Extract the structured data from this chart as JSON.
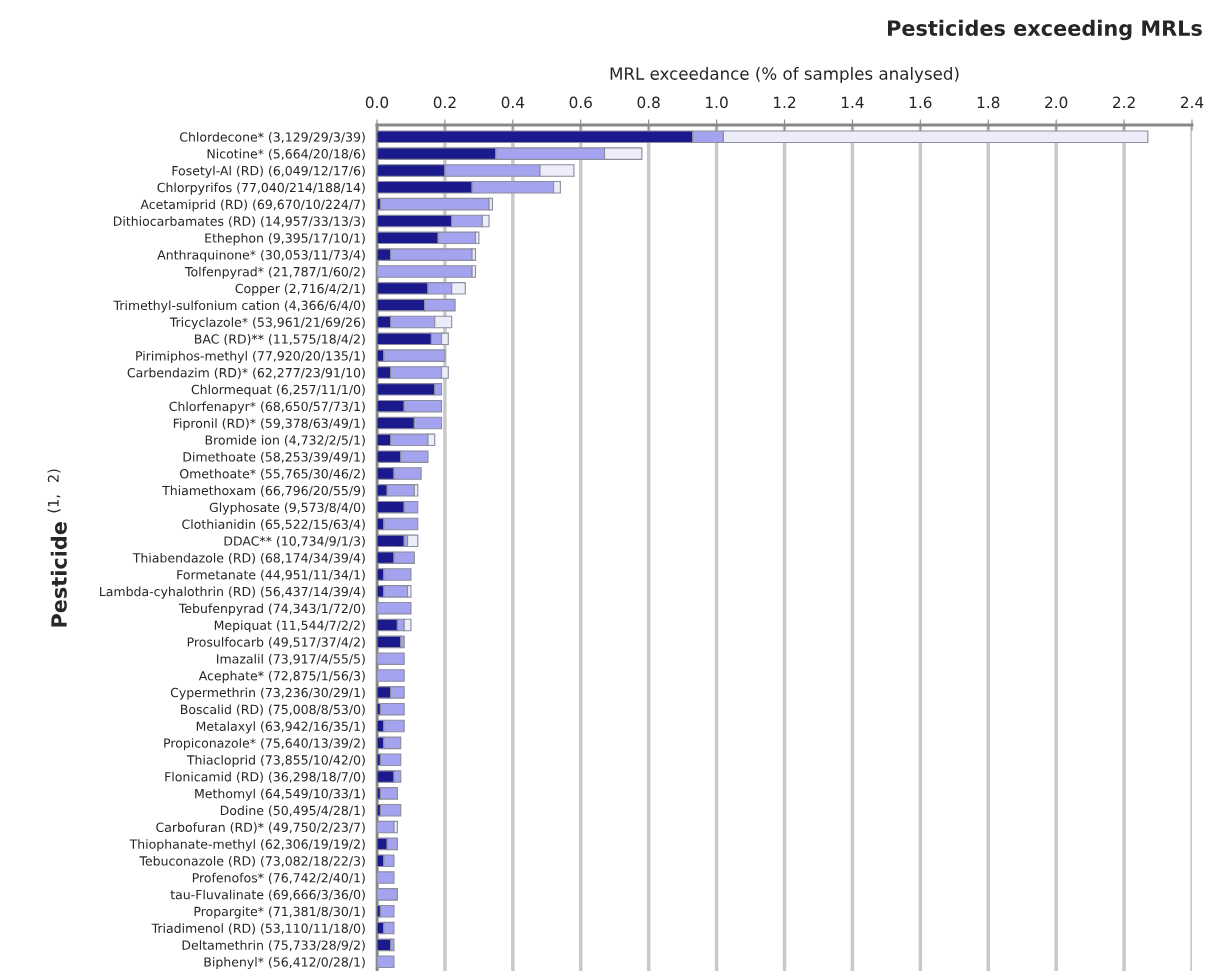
{
  "chart_data": {
    "type": "bar",
    "orientation": "horizontal",
    "stacked": true,
    "title": "Pesticides exceeding MRLs",
    "xlabel": "MRL exceedance (% of samples analysed)",
    "ylabel": "Pesticide $^{(1,}$ $^{2)}$",
    "categories": [
      "Chlordecone* (3,129/29/3/39)",
      "Nicotine* (5,664/20/18/6)",
      "Fosetyl-Al (RD) (6,049/12/17/6)",
      "Chlorpyrifos (77,040/214/188/14)",
      "Acetamiprid (RD) (69,670/10/224/7)",
      "Dithiocarbamates (RD) (14,957/33/13/3)",
      "Ethephon (9,395/17/10/1)",
      "Anthraquinone* (30,053/11/73/4)",
      "Tolfenpyrad* (21,787/1/60/2)",
      "Copper (2,716/4/2/1)",
      "Trimethyl-sulfonium cation (4,366/6/4/0)",
      "Tricyclazole* (53,961/21/69/26)",
      "BAC (RD)** (11,575/18/4/2)",
      "Pirimiphos-methyl (77,920/20/135/1)",
      "Carbendazim (RD)* (62,277/23/91/10)",
      "Chlormequat (6,257/11/1/0)",
      "Chlorfenapyr* (68,650/57/73/1)",
      "Fipronil (RD)* (59,378/63/49/1)",
      "Bromide ion (4,732/2/5/1)",
      "Dimethoate (58,253/39/49/1)",
      "Omethoate* (55,765/30/46/2)",
      "Thiamethoxam (66,796/20/55/9)",
      "Glyphosate (9,573/8/4/0)",
      "Clothianidin (65,522/15/63/4)",
      "DDAC** (10,734/9/1/3)",
      "Thiabendazole (RD) (68,174/34/39/4)",
      "Formetanate (44,951/11/34/1)",
      "Lambda-cyhalothrin (RD) (56,437/14/39/4)",
      "Tebufenpyrad (74,343/1/72/0)",
      "Mepiquat (11,544/7/2/2)",
      "Prosulfocarb (49,517/37/4/2)",
      "Imazalil (73,917/4/55/5)",
      "Acephate* (72,875/1/56/3)",
      "Cypermethrin (73,236/30/29/1)",
      "Boscalid (RD) (75,008/8/53/0)",
      "Metalaxyl (63,942/16/35/1)",
      "Propiconazole* (75,640/13/39/2)",
      "Thiacloprid (73,855/10/42/0)",
      "Flonicamid (RD) (36,298/18/7/0)",
      "Methomyl (64,549/10/33/1)",
      "Dodine (50,495/4/28/1)",
      "Carbofuran (RD)* (49,750/2/23/7)",
      "Thiophanate-methyl (62,306/19/19/2)",
      "Tebuconazole (RD) (73,082/18/22/3)",
      "Profenofos* (76,742/2/40/1)",
      "tau-Fluvalinate (69,666/3/36/0)",
      "Propargite* (71,381/8/30/1)",
      "Triadimenol (RD) (53,110/11/18/0)",
      "Deltamethrin (75,733/28/9/2)",
      "Biphenyl* (56,412/0/28/1)"
    ],
    "series": [
      {
        "color": "#1a1a8c",
        "values": [
          0.93,
          0.35,
          0.2,
          0.28,
          0.01,
          0.22,
          0.18,
          0.04,
          0,
          0.15,
          0.14,
          0.04,
          0.16,
          0.02,
          0.04,
          0.17,
          0.08,
          0.11,
          0.04,
          0.07,
          0.05,
          0.03,
          0.08,
          0.02,
          0.08,
          0.05,
          0.02,
          0.02,
          0,
          0.06,
          0.07,
          0,
          0,
          0.04,
          0.01,
          0.02,
          0.02,
          0.01,
          0.05,
          0.01,
          0.01,
          0,
          0.03,
          0.02,
          0,
          0,
          0.01,
          0.02,
          0.04,
          0
        ]
      },
      {
        "color": "#a3a3f0",
        "values": [
          0.09,
          0.32,
          0.28,
          0.24,
          0.32,
          0.09,
          0.11,
          0.24,
          0.28,
          0.07,
          0.09,
          0.13,
          0.03,
          0.18,
          0.15,
          0.02,
          0.11,
          0.08,
          0.11,
          0.08,
          0.08,
          0.08,
          0.04,
          0.1,
          0.01,
          0.06,
          0.08,
          0.07,
          0.1,
          0.02,
          0.01,
          0.08,
          0.08,
          0.04,
          0.07,
          0.06,
          0.05,
          0.06,
          0.02,
          0.05,
          0.06,
          0.05,
          0.03,
          0.03,
          0.05,
          0.06,
          0.04,
          0.03,
          0.01,
          0.05
        ]
      },
      {
        "color": "#ececfa",
        "values": [
          1.25,
          0.11,
          0.1,
          0.02,
          0.01,
          0.02,
          0.01,
          0.01,
          0.01,
          0.04,
          0,
          0.05,
          0.02,
          0,
          0.02,
          0,
          0,
          0,
          0.02,
          0,
          0,
          0.01,
          0,
          0,
          0.03,
          0,
          0,
          0.01,
          0,
          0.02,
          0,
          0,
          0,
          0,
          0,
          0,
          0,
          0,
          0,
          0,
          0,
          0.01,
          0,
          0,
          0,
          0,
          0,
          0,
          0,
          0
        ]
      }
    ],
    "xlim": [
      0,
      2.4
    ],
    "xticks": [
      {
        "value": 0,
        "label": "0.0"
      },
      0.2,
      0.4,
      0.6,
      0.8,
      {
        "value": 1,
        "label": "1.0"
      },
      1.2,
      1.4,
      1.6,
      1.8,
      {
        "value": 2,
        "label": "2.0"
      },
      2.2,
      2.4
    ],
    "grid": "x"
  }
}
